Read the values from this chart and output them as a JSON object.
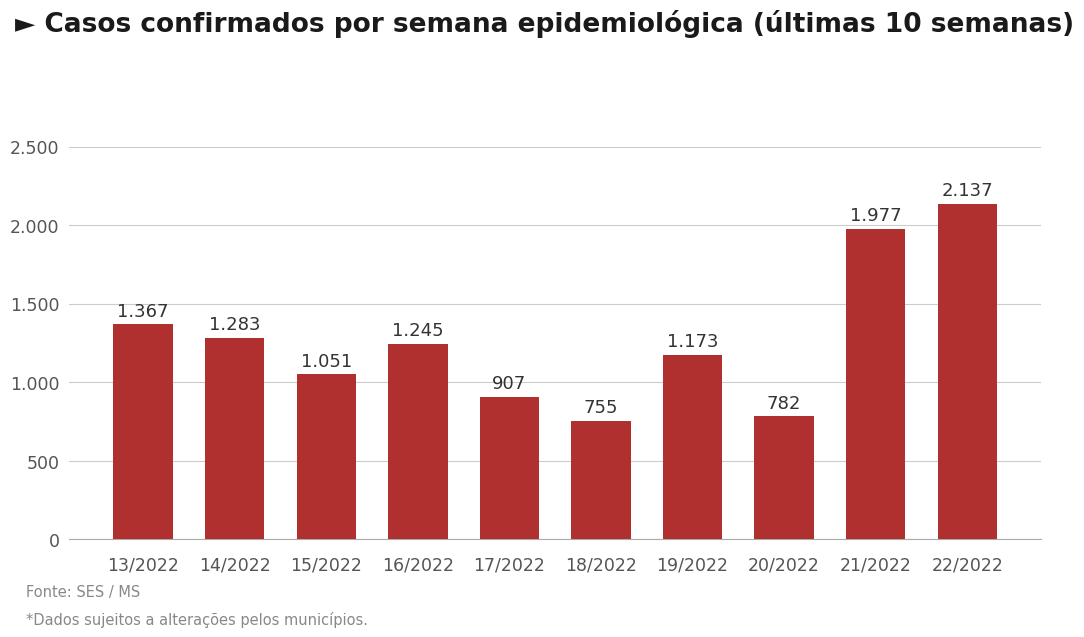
{
  "title": "► Casos confirmados por semana epidemiológica (últimas 10 semanas)",
  "categories": [
    "13/2022",
    "14/2022",
    "15/2022",
    "16/2022",
    "17/2022",
    "18/2022",
    "19/2022",
    "20/2022",
    "21/2022",
    "22/2022"
  ],
  "values": [
    1367,
    1283,
    1051,
    1245,
    907,
    755,
    1173,
    782,
    1977,
    2137
  ],
  "bar_color": "#b03030",
  "background_color": "#ffffff",
  "ylim": [
    0,
    2700
  ],
  "yticks": [
    0,
    500,
    1000,
    1500,
    2000,
    2500
  ],
  "footnote_line1": "Fonte: SES / MS",
  "footnote_line2": "*Dados sujeitos a alterações pelos municípios.",
  "title_fontsize": 19,
  "tick_fontsize": 12.5,
  "label_fontsize": 13,
  "footnote_fontsize": 10.5
}
